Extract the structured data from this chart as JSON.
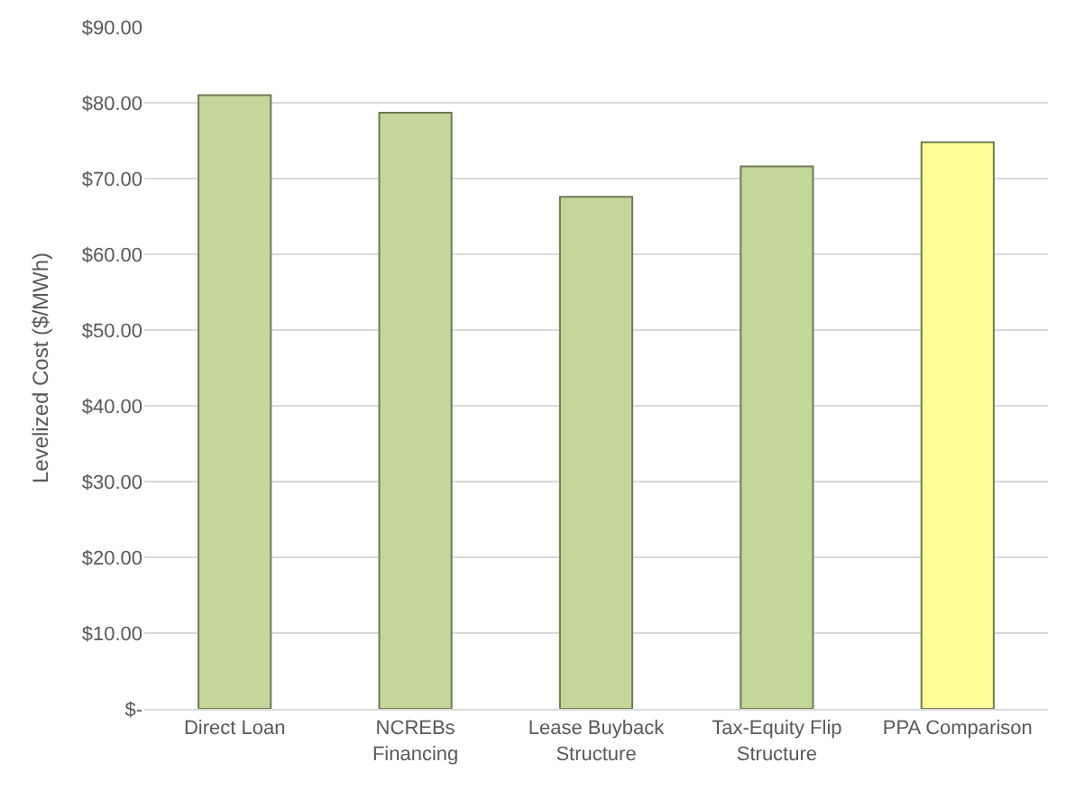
{
  "chart_data": {
    "type": "bar",
    "ylabel": "Levelized Cost ($/MWh)",
    "categories": [
      "Direct Loan",
      "NCREBs Financing",
      "Lease Buyback Structure",
      "Tax-Equity Flip Structure",
      "PPA Comparison"
    ],
    "values": [
      81.0,
      78.7,
      67.6,
      71.6,
      74.8
    ],
    "colors": [
      "#c4d79b",
      "#c4d79b",
      "#c4d79b",
      "#c4d79b",
      "#ffff99"
    ],
    "ylim": [
      0,
      90
    ],
    "yticks": [
      {
        "value": 0,
        "label": "$-"
      },
      {
        "value": 10,
        "label": "$10.00"
      },
      {
        "value": 20,
        "label": "$20.00"
      },
      {
        "value": 30,
        "label": "$30.00"
      },
      {
        "value": 40,
        "label": "$40.00"
      },
      {
        "value": 50,
        "label": "$50.00"
      },
      {
        "value": 60,
        "label": "$60.00"
      },
      {
        "value": 70,
        "label": "$70.00"
      },
      {
        "value": 80,
        "label": "$80.00"
      },
      {
        "value": 90,
        "label": "$90.00"
      }
    ],
    "grid": "y"
  }
}
